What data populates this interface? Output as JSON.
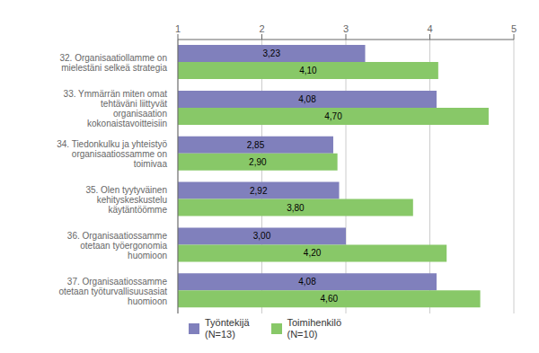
{
  "chart_data": {
    "type": "bar",
    "orientation": "horizontal",
    "categories": [
      "32. Organisaatiollamme on\nmielestäni selkeä strategia",
      "33. Ymmärrän miten omat\ntehtäväni liittyvät\norganisaation\nkokonaistavoitteisiin",
      "34. Tiedonkulku ja yhteistyö\norganisaatiossamme on\ntoimivaa",
      "35. Olen tyytyväinen\nkehityskeskustelu\nkäytäntöömme",
      "36. Organisaatiossamme\notetaan työergonomia\nhuomioon",
      "37. Organisaatiossamme\notetaan työturvallisuusasiat\nhuomioon"
    ],
    "series": [
      {
        "name": "Työntekijä\n(N=13)",
        "color": "#8080bc",
        "values": [
          3.23,
          4.08,
          2.85,
          2.92,
          3.0,
          4.08
        ],
        "value_labels": [
          "3,23",
          "4,08",
          "2,85",
          "2,92",
          "3,00",
          "4,08"
        ]
      },
      {
        "name": "Toimihenkilö\n(N=10)",
        "color": "#88c868",
        "values": [
          4.1,
          4.7,
          2.9,
          3.8,
          4.2,
          4.6
        ],
        "value_labels": [
          "4,10",
          "4,70",
          "2,90",
          "3,80",
          "4,20",
          "4,60"
        ]
      }
    ],
    "xlim": [
      1,
      5
    ],
    "xticks": [
      1,
      2,
      3,
      4,
      5
    ],
    "grid": true,
    "legend": "bottom",
    "data_labels": true
  }
}
